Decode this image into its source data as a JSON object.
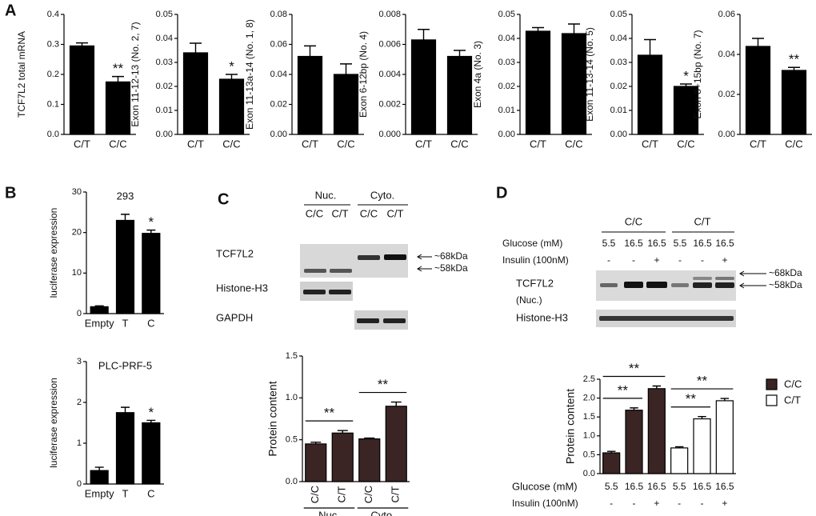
{
  "panels": [
    "A",
    "B",
    "C",
    "D"
  ],
  "chart_data": [
    {
      "type": "bar",
      "ylabel": "TCF7L2 total mRNA",
      "categories": [
        "C/T",
        "C/C"
      ],
      "values": [
        0.295,
        0.175
      ],
      "errors": [
        0.01,
        0.018
      ],
      "stars": [
        null,
        "**"
      ],
      "color": "#000000",
      "ylim": [
        0,
        0.4
      ],
      "yticks": [
        {
          "value": 0,
          "label": "0.0"
        },
        0.1,
        0.2,
        0.3,
        0.4
      ]
    },
    {
      "type": "bar",
      "ylabel": "Exon 11-12-13 (No. 2, 7)",
      "categories": [
        "C/T",
        "C/C"
      ],
      "values": [
        0.034,
        0.023
      ],
      "errors": [
        0.004,
        0.002
      ],
      "stars": [
        null,
        "*"
      ],
      "color": "#000000",
      "ylim": [
        0,
        0.05
      ],
      "yticks": [
        {
          "value": 0,
          "label": "0.00"
        },
        0.01,
        0.02,
        0.03,
        0.04,
        0.05
      ]
    },
    {
      "type": "bar",
      "ylabel": "Exon 11-13a-14 (No. 1, 8)",
      "categories": [
        "C/T",
        "C/C"
      ],
      "values": [
        0.052,
        0.04
      ],
      "errors": [
        0.007,
        0.007
      ],
      "color": "#000000",
      "ylim": [
        0,
        0.08
      ],
      "yticks": [
        {
          "value": 0,
          "label": "0.00"
        },
        0.02,
        0.04,
        0.06,
        0.08
      ]
    },
    {
      "type": "bar",
      "ylabel": "Exon 6-12bp (No. 4)",
      "categories": [
        "C/T",
        "C/C"
      ],
      "values": [
        0.0063,
        0.0052
      ],
      "errors": [
        0.0007,
        0.0004
      ],
      "color": "#000000",
      "ylim": [
        0,
        0.008
      ],
      "yticks": [
        {
          "value": 0,
          "label": "0.000"
        },
        0.002,
        0.004,
        0.006,
        0.008
      ]
    },
    {
      "type": "bar",
      "ylabel": "Exon 4a (No. 3)",
      "categories": [
        "C/T",
        "C/C"
      ],
      "values": [
        0.043,
        0.042
      ],
      "errors": [
        0.0015,
        0.004
      ],
      "color": "#000000",
      "ylim": [
        0,
        0.05
      ],
      "yticks": [
        {
          "value": 0,
          "label": "0.00"
        },
        0.01,
        0.02,
        0.03,
        0.04,
        0.05
      ]
    },
    {
      "type": "bar",
      "ylabel": "Exon 11-13-14 (No. 5)",
      "categories": [
        "C/T",
        "C/C"
      ],
      "values": [
        0.033,
        0.02
      ],
      "errors": [
        0.0065,
        0.001
      ],
      "stars": [
        null,
        "*"
      ],
      "color": "#000000",
      "ylim": [
        0,
        0.05
      ],
      "yticks": [
        {
          "value": 0,
          "label": "0.00"
        },
        0.01,
        0.02,
        0.03,
        0.04,
        0.05
      ]
    },
    {
      "type": "bar",
      "ylabel": "Exon 8+15bp (No. 7)",
      "categories": [
        "C/T",
        "C/C"
      ],
      "values": [
        0.044,
        0.032
      ],
      "errors": [
        0.004,
        0.0015
      ],
      "stars": [
        null,
        "**"
      ],
      "color": "#000000",
      "ylim": [
        0,
        0.06
      ],
      "yticks": [
        {
          "value": 0,
          "label": "0.00"
        },
        0.02,
        0.04,
        0.06
      ]
    },
    {
      "type": "bar",
      "title": "293",
      "ylabel": "luciferase expression",
      "categories": [
        "Empty",
        "T",
        "C"
      ],
      "values": [
        1.7,
        23,
        19.8
      ],
      "errors": [
        0.2,
        1.5,
        0.8
      ],
      "stars": [
        null,
        null,
        "*"
      ],
      "color": "#000000",
      "ylim": [
        0,
        30
      ],
      "yticks": [
        0,
        10,
        20,
        30
      ]
    },
    {
      "type": "bar",
      "title": "PLC-PRF-5",
      "ylabel": "luciferase expression",
      "categories": [
        "Empty",
        "T",
        "C"
      ],
      "values": [
        0.33,
        1.75,
        1.5
      ],
      "errors": [
        0.08,
        0.13,
        0.06
      ],
      "stars": [
        null,
        null,
        "*"
      ],
      "color": "#000000",
      "ylim": [
        0,
        3
      ],
      "yticks": [
        0,
        1,
        2,
        3
      ]
    },
    {
      "type": "bar",
      "ylabel": "Protein content",
      "categories": [
        "C/C",
        "C/T",
        "C/C",
        "C/T"
      ],
      "groups": [
        "Nuc.",
        "Cyto."
      ],
      "values": [
        0.45,
        0.58,
        0.51,
        0.9
      ],
      "errors": [
        0.02,
        0.03,
        0.01,
        0.05
      ],
      "brackets": [
        {
          "text": "**",
          "from": 0,
          "to": 1
        },
        {
          "text": "**",
          "from": 2,
          "to": 3
        }
      ],
      "color": "#3b2424",
      "ylim": [
        0,
        1.5
      ],
      "yticks": [
        {
          "value": 0,
          "label": "0.0"
        },
        0.5,
        {
          "value": 1,
          "label": "1.0"
        },
        1.5
      ]
    },
    {
      "type": "bar",
      "ylabel": "Protein content",
      "xlabel": "Glucose (mM)",
      "categories": [
        "5.5",
        "16.5",
        "16.5",
        "5.5",
        "16.5",
        "16.5"
      ],
      "xlabel2": "Insulin (100nM)",
      "categories2": [
        "-",
        "-",
        "+",
        "-",
        "-",
        "+"
      ],
      "series": [
        {
          "name": "C/C",
          "color": "#3b2424",
          "values": [
            0.55,
            1.68,
            2.25,
            null,
            null,
            null
          ],
          "errors": [
            0.04,
            0.06,
            0.07,
            null,
            null,
            null
          ]
        },
        {
          "name": "C/T",
          "color": "#ffffff",
          "values": [
            null,
            null,
            null,
            0.68,
            1.45,
            1.93
          ],
          "errors": [
            null,
            null,
            null,
            0.03,
            0.06,
            0.06
          ]
        }
      ],
      "brackets": [
        {
          "text": "**",
          "from": 0,
          "to": 1
        },
        {
          "text": "**",
          "from": 0,
          "to": 2
        },
        {
          "text": "**",
          "from": 3,
          "to": 4
        },
        {
          "text": "**",
          "from": 3,
          "to": 5
        }
      ],
      "legend": "top-right",
      "ylim": [
        0,
        2.5
      ],
      "yticks": [
        {
          "value": 0,
          "label": "0.0"
        },
        0.5,
        {
          "value": 1,
          "label": "1.0"
        },
        1.5,
        {
          "value": 2,
          "label": "2.0"
        },
        2.5
      ]
    }
  ],
  "blot_c": {
    "groups": [
      "Nuc.",
      "Cyto."
    ],
    "lanes": [
      "C/C",
      "C/T",
      "C/C",
      "C/T"
    ],
    "rows": [
      "TCF7L2",
      "Histone-H3",
      "GAPDH"
    ],
    "markers": [
      "~68kDa",
      "~58kDa"
    ]
  },
  "blot_d": {
    "groups": [
      "C/C",
      "C/T"
    ],
    "glucose_label": "Glucose (mM)",
    "glucose": [
      "5.5",
      "16.5",
      "16.5",
      "5.5",
      "16.5",
      "16.5"
    ],
    "insulin_label": "Insulin (100nM)",
    "insulin": [
      "-",
      "-",
      "+",
      "-",
      "-",
      "+"
    ],
    "rows": [
      "TCF7L2",
      "(Nuc.)",
      "Histone-H3"
    ],
    "markers": [
      "~68kDa",
      "~58kDa"
    ]
  }
}
